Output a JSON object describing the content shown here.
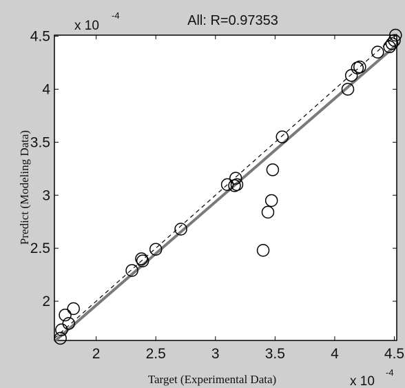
{
  "chart_data": {
    "type": "scatter",
    "title": "All: R=0.97353",
    "xlabel": "Target (Experimental Data)",
    "ylabel": "Predict (Modeling Data)",
    "x_multiplier": {
      "base": "x 10",
      "exponent": "-4"
    },
    "y_multiplier": {
      "base": "x 10",
      "exponent": "-4"
    },
    "xlim": [
      1.65,
      4.52
    ],
    "ylim": [
      1.63,
      4.51
    ],
    "x_ticks": [
      2,
      2.5,
      3,
      3.5,
      4,
      4.5
    ],
    "x_tick_labels": [
      "2",
      "2.5",
      "3",
      "3.5",
      "4",
      "4.5"
    ],
    "y_ticks": [
      2,
      2.5,
      3,
      3.5,
      4,
      4.5
    ],
    "y_tick_labels": [
      "2",
      "2.5",
      "3",
      "3.5",
      "4",
      "4.5"
    ],
    "grid": false,
    "fit_line": {
      "x": [
        1.65,
        4.52
      ],
      "y": [
        1.62,
        4.42
      ],
      "color": "#7a7a7a"
    },
    "identity_line": {
      "x": [
        1.65,
        4.52
      ],
      "y": [
        1.65,
        4.52
      ],
      "style": "dashed"
    },
    "points": [
      {
        "x": 1.7,
        "y": 1.65
      },
      {
        "x": 1.71,
        "y": 1.73
      },
      {
        "x": 1.74,
        "y": 1.87
      },
      {
        "x": 1.77,
        "y": 1.79
      },
      {
        "x": 1.81,
        "y": 1.93
      },
      {
        "x": 2.3,
        "y": 2.29
      },
      {
        "x": 2.38,
        "y": 2.4
      },
      {
        "x": 2.39,
        "y": 2.38
      },
      {
        "x": 2.5,
        "y": 2.49
      },
      {
        "x": 2.71,
        "y": 2.68
      },
      {
        "x": 3.1,
        "y": 3.1
      },
      {
        "x": 3.16,
        "y": 3.09
      },
      {
        "x": 3.17,
        "y": 3.16
      },
      {
        "x": 3.18,
        "y": 3.1
      },
      {
        "x": 3.4,
        "y": 2.48
      },
      {
        "x": 3.44,
        "y": 2.84
      },
      {
        "x": 3.47,
        "y": 2.95
      },
      {
        "x": 3.48,
        "y": 3.24
      },
      {
        "x": 3.56,
        "y": 3.55
      },
      {
        "x": 4.11,
        "y": 4.0
      },
      {
        "x": 4.14,
        "y": 4.13
      },
      {
        "x": 4.19,
        "y": 4.2
      },
      {
        "x": 4.21,
        "y": 4.21
      },
      {
        "x": 4.36,
        "y": 4.35
      },
      {
        "x": 4.46,
        "y": 4.4
      },
      {
        "x": 4.48,
        "y": 4.43
      },
      {
        "x": 4.5,
        "y": 4.46
      },
      {
        "x": 4.51,
        "y": 4.51
      }
    ]
  }
}
